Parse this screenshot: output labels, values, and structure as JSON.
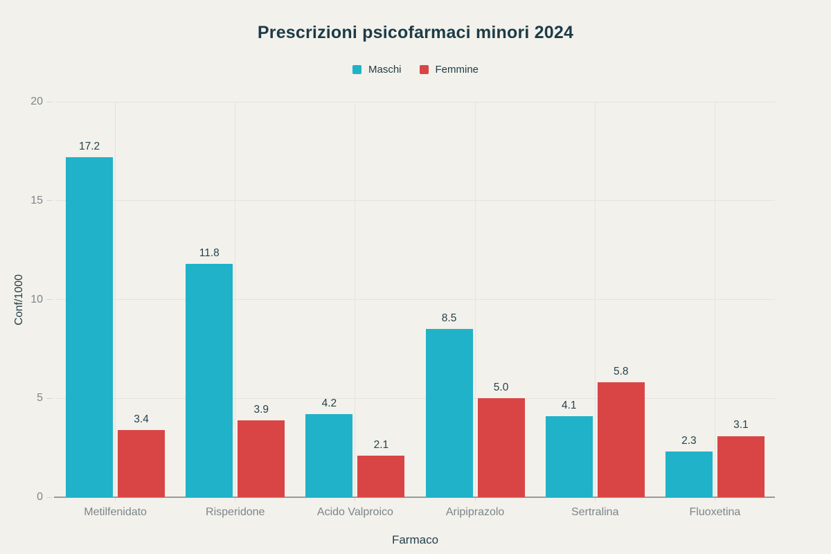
{
  "chart_data": {
    "type": "bar",
    "title": "Prescrizioni psicofarmaci minori 2024",
    "xlabel": "Farmaco",
    "ylabel": "Conf/1000",
    "categories": [
      "Metilfenidato",
      "Risperidone",
      "Acido Valproico",
      "Aripiprazolo",
      "Sertralina",
      "Fluoxetina"
    ],
    "series": [
      {
        "name": "Maschi",
        "color": "#20B2C8",
        "values": [
          17.2,
          11.8,
          4.2,
          8.5,
          4.1,
          2.3
        ]
      },
      {
        "name": "Femmine",
        "color": "#D94545",
        "values": [
          3.4,
          3.9,
          2.1,
          5.0,
          5.8,
          3.1
        ]
      }
    ],
    "ylim": [
      0,
      20
    ],
    "yticks": [
      0,
      5,
      10,
      15,
      20
    ],
    "grid": true,
    "legend_position": "top",
    "value_labels": true,
    "value_decimals": 1
  },
  "colors": {
    "background": "#F2F1EB",
    "title_text": "#1D3B47",
    "label_text": "#24414B",
    "muted_text": "#7D858A",
    "gridline": "#E4E3DD",
    "tick": "#D9D8D2",
    "axis_line": "#97999B"
  }
}
